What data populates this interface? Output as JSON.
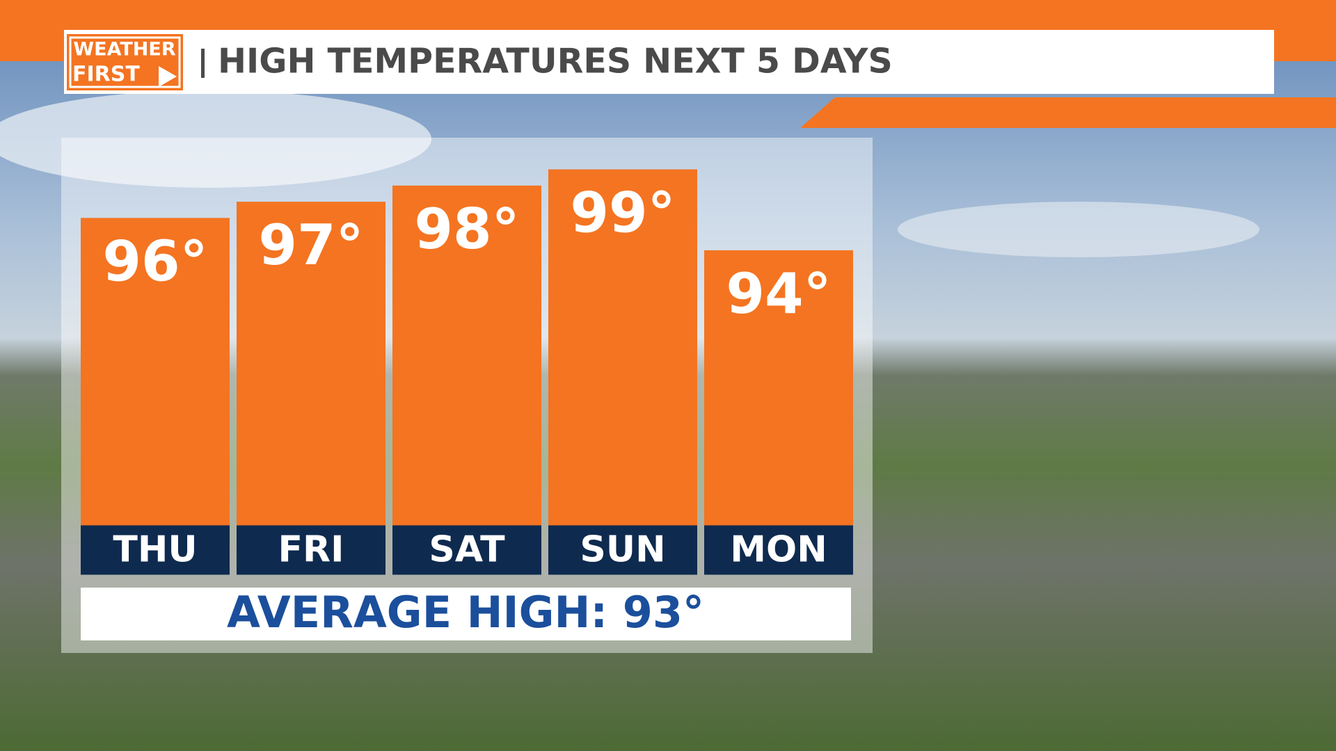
{
  "logo": [
    "WEATHER",
    "FIRST"
  ],
  "chart_data": {
    "type": "bar",
    "title": "HIGH TEMPERATURES NEXT 5 DAYS",
    "categories": [
      "THU",
      "FRI",
      "SAT",
      "SUN",
      "MON"
    ],
    "values": [
      96,
      97,
      98,
      99,
      94
    ],
    "value_labels": [
      "96°",
      "97°",
      "98°",
      "99°",
      "94°"
    ],
    "color": "#f47421",
    "ylim": [
      77,
      100
    ],
    "annotation": "AVERAGE HIGH: 93°"
  }
}
